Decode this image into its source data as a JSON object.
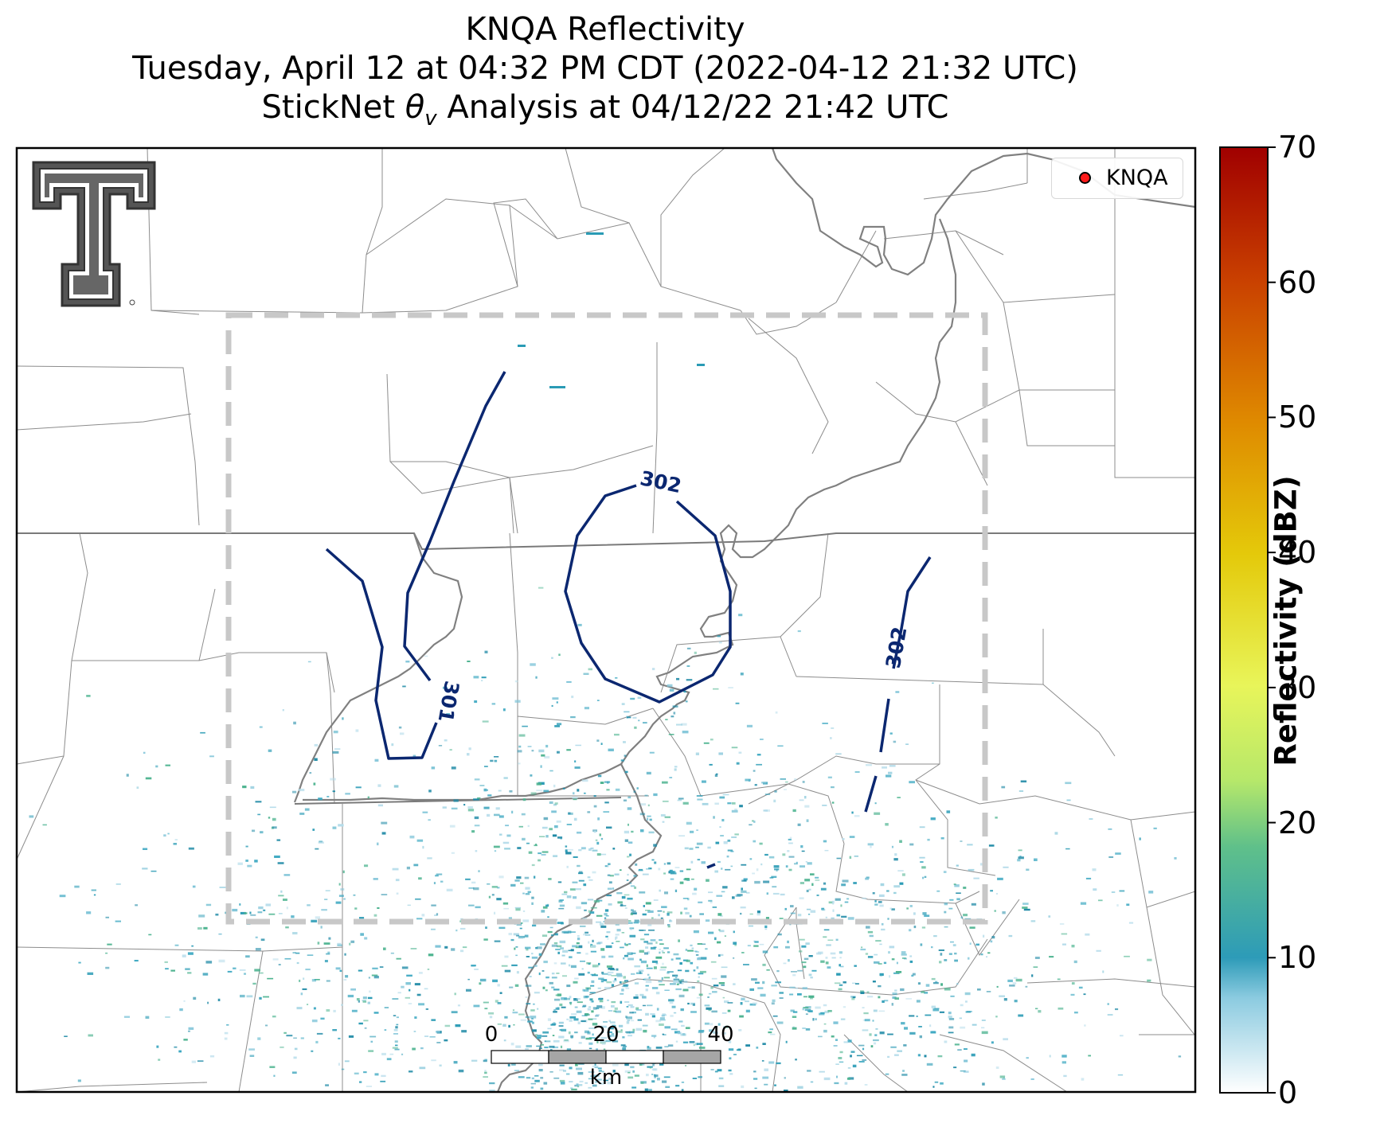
{
  "title": {
    "line1": "KNQA Reflectivity",
    "line2": "Tuesday, April 12 at 04:32 PM CDT (2022-04-12 21:32 UTC)",
    "line3_prefix": "StickNet ",
    "line3_symbol": "θ",
    "line3_subscript": "v",
    "line3_suffix": " Analysis at 04/12/22 21:42 UTC"
  },
  "legend": {
    "label": "KNQA",
    "marker_color": "#ff1a1a"
  },
  "colorbar": {
    "label": "Reflectivity (dBZ)",
    "ticks": [
      "0",
      "10",
      "20",
      "30",
      "40",
      "50",
      "60",
      "70"
    ],
    "colors": [
      "#ffffff",
      "#2d9bb8",
      "#5fc08a",
      "#e8f55a",
      "#e4c90a",
      "#df8a00",
      "#c94000",
      "#a00000"
    ]
  },
  "contours": [
    {
      "label": "301"
    },
    {
      "label": "302"
    },
    {
      "label": "302"
    }
  ],
  "scale_bar": {
    "labels": [
      "0",
      "20",
      "40"
    ],
    "unit": "km"
  },
  "logo": {
    "name": "Texas Tech Double T"
  },
  "colors": {
    "contour": "#0b2770",
    "county_lines": "#8c8c8c",
    "state_lines": "#7a7a7a",
    "river": "#808080",
    "analysis_box": "#c8c8c8",
    "echo": "#2a9bb5"
  }
}
